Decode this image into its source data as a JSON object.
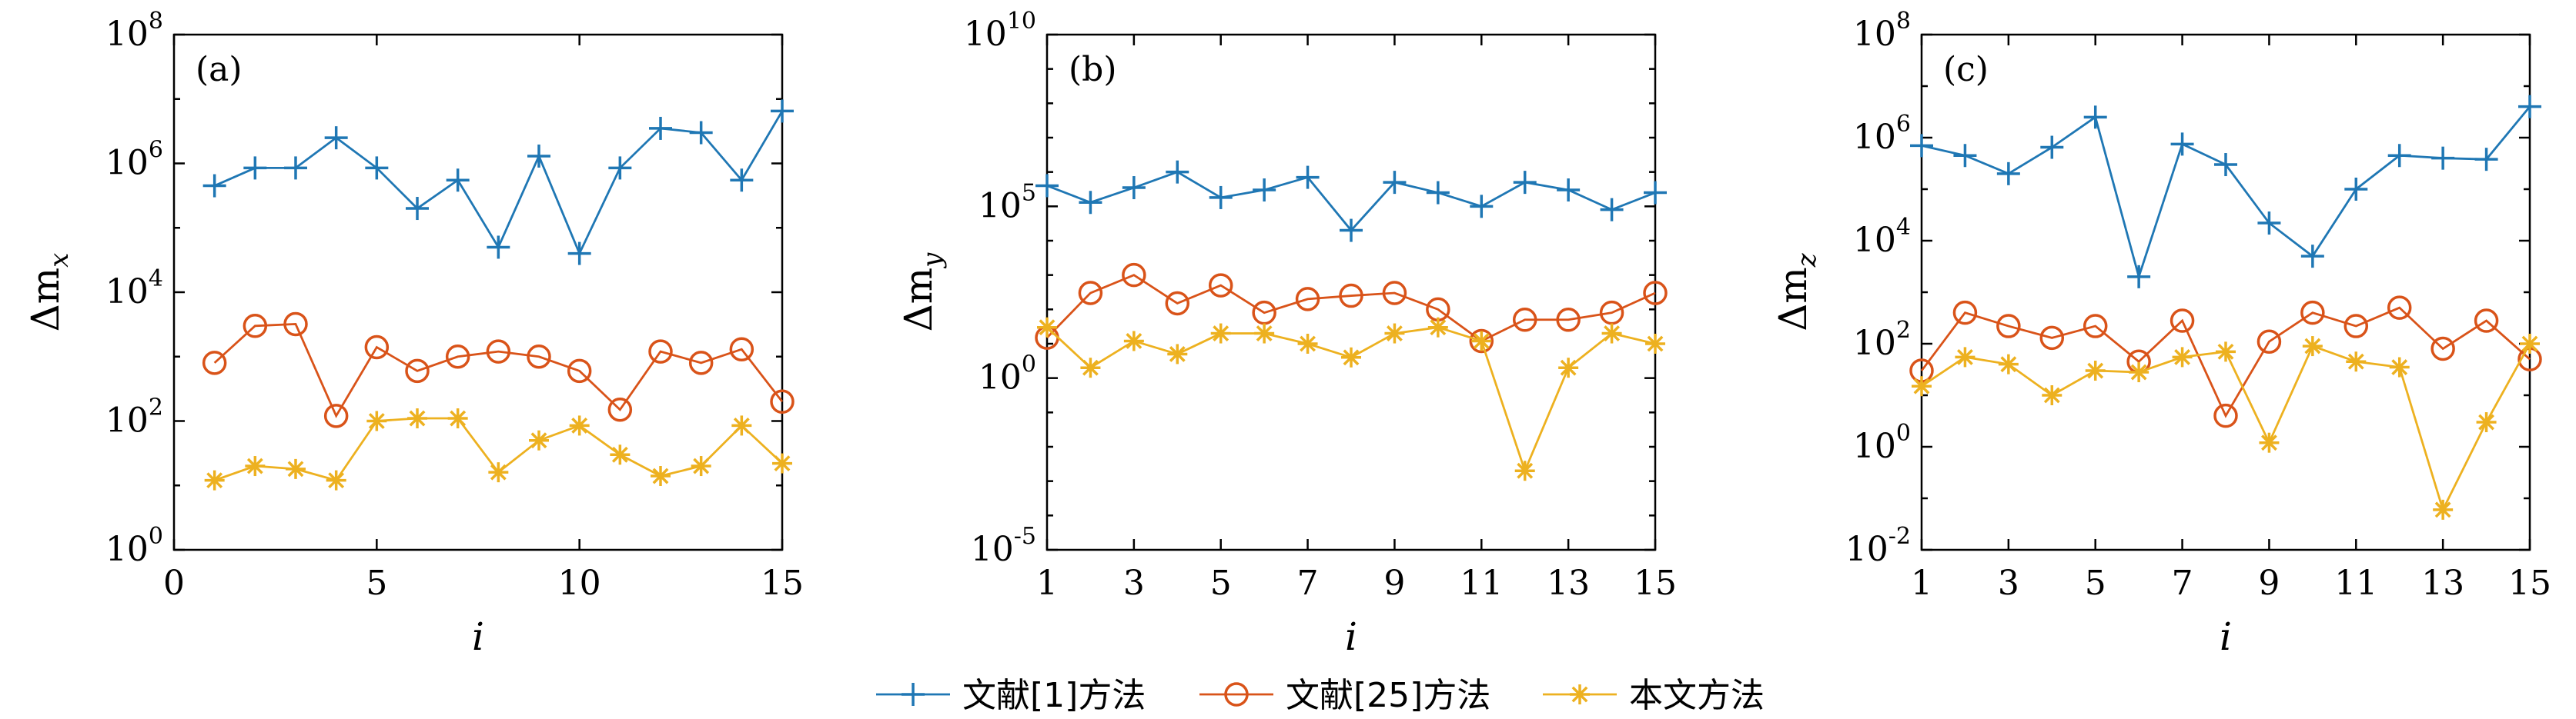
{
  "legend": [
    {
      "name": "文献[1]方法",
      "color": "#1f77b4",
      "marker": "plus"
    },
    {
      "name": "文献[25]方法",
      "color": "#d95319",
      "marker": "circle"
    },
    {
      "name": "本文方法",
      "color": "#edb120",
      "marker": "star"
    }
  ],
  "chart_data": [
    {
      "type": "line",
      "tag": "(a)",
      "xlabel": "i",
      "ylabel_base": "Δm",
      "ylabel_sub": "x",
      "yscale": "log",
      "xlim": [
        0,
        15
      ],
      "ylim_exp": [
        0,
        8
      ],
      "xticks": [
        0,
        5,
        10,
        15
      ],
      "yticks_exp": [
        0,
        2,
        4,
        6,
        8
      ],
      "x": [
        1,
        2,
        3,
        4,
        5,
        6,
        7,
        8,
        9,
        10,
        11,
        12,
        13,
        14,
        15
      ],
      "series": [
        {
          "name": "文献[1]方法",
          "values": [
            450000.0,
            850000.0,
            850000.0,
            2500000.0,
            850000.0,
            200000.0,
            550000.0,
            50000.0,
            1300000.0,
            40000.0,
            850000.0,
            3500000.0,
            3000000.0,
            550000.0,
            6500000.0
          ]
        },
        {
          "name": "文献[25]方法",
          "values": [
            800,
            3000,
            3200,
            120,
            1400,
            600,
            1000,
            1200,
            1000,
            600,
            150,
            1200,
            800,
            1300,
            200
          ]
        },
        {
          "name": "本文方法",
          "values": [
            12,
            20,
            18,
            12,
            100,
            110,
            110,
            16,
            50,
            85,
            30,
            14,
            20,
            85,
            22
          ]
        }
      ]
    },
    {
      "type": "line",
      "tag": "(b)",
      "xlabel": "i",
      "ylabel_base": "Δm",
      "ylabel_sub": "y",
      "yscale": "log",
      "xlim": [
        1,
        15
      ],
      "ylim_exp": [
        -5,
        10
      ],
      "xticks": [
        1,
        3,
        5,
        7,
        9,
        11,
        13,
        15
      ],
      "yticks_exp": [
        -5,
        0,
        5,
        10
      ],
      "x": [
        1,
        2,
        3,
        4,
        5,
        6,
        7,
        8,
        9,
        10,
        11,
        12,
        13,
        14,
        15
      ],
      "series": [
        {
          "name": "文献[1]方法",
          "values": [
            400000.0,
            130000.0,
            350000.0,
            1000000.0,
            180000.0,
            300000.0,
            700000.0,
            20000.0,
            500000.0,
            250000.0,
            100000.0,
            500000.0,
            300000.0,
            80000.0,
            250000.0
          ]
        },
        {
          "name": "文献[25]方法",
          "values": [
            15,
            300,
            1000,
            150,
            500,
            80,
            200,
            250,
            300,
            100,
            12,
            50,
            50,
            80,
            300
          ]
        },
        {
          "name": "本文方法",
          "values": [
            30,
            2,
            12,
            5,
            20,
            20,
            10,
            4,
            20,
            30,
            12,
            0.002,
            2,
            20,
            10
          ]
        }
      ]
    },
    {
      "type": "line",
      "tag": "(c)",
      "xlabel": "i",
      "ylabel_base": "Δm",
      "ylabel_sub": "z",
      "yscale": "log",
      "xlim": [
        1,
        15
      ],
      "ylim_exp": [
        -2,
        8
      ],
      "xticks": [
        1,
        3,
        5,
        7,
        9,
        11,
        13,
        15
      ],
      "yticks_exp": [
        -2,
        0,
        2,
        4,
        6,
        8
      ],
      "x": [
        1,
        2,
        3,
        4,
        5,
        6,
        7,
        8,
        9,
        10,
        11,
        12,
        13,
        14,
        15
      ],
      "series": [
        {
          "name": "文献[1]方法",
          "values": [
            700000.0,
            450000.0,
            200000.0,
            650000.0,
            2500000.0,
            2000.0,
            750000.0,
            300000.0,
            22000.0,
            5000.0,
            100000.0,
            450000.0,
            400000.0,
            380000.0,
            4000000.0
          ]
        },
        {
          "name": "文献[25]方法",
          "values": [
            30,
            400,
            220,
            130,
            220,
            45,
            280,
            4,
            110,
            400,
            220,
            500,
            80,
            280,
            50
          ]
        },
        {
          "name": "本文方法",
          "values": [
            15,
            55,
            40,
            10,
            30,
            28,
            55,
            70,
            1.2,
            90,
            45,
            35,
            0.06,
            3,
            100
          ]
        }
      ]
    }
  ]
}
